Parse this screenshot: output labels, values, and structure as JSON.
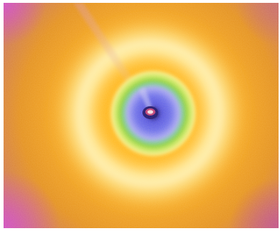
{
  "image": {
    "subject": "diffraction-pattern",
    "colors": {
      "center_hot": "#f2e0e8",
      "center_core": "#c0407a",
      "beam_stop": "#1a1070",
      "inner_blue": "#6a6ef0",
      "inner_violet": "#a8a8f6",
      "green_ring": "#88d040",
      "yellow_inner": "#f6f08a",
      "pale_ring": "#fff6c0",
      "orange_mid": "#ffb820",
      "orange_outer": "#e8901c",
      "edge_rose": "#c87070",
      "corner_magenta": "#d04cc4"
    }
  }
}
